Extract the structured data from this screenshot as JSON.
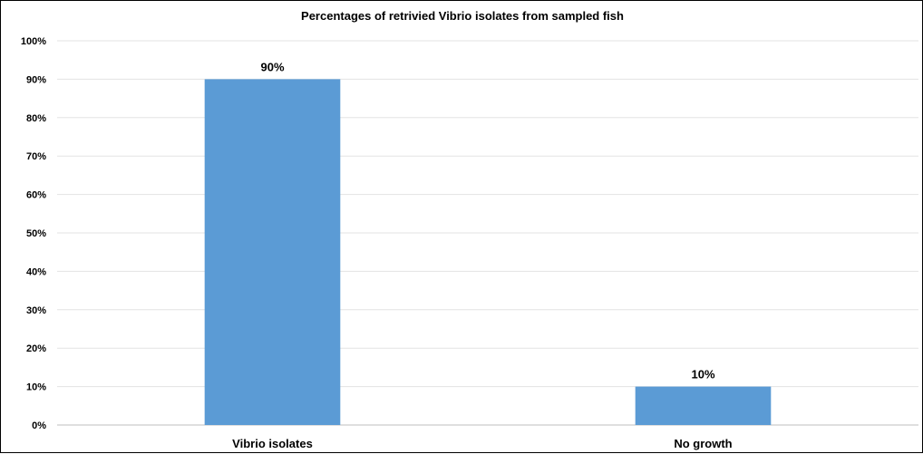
{
  "chart_data": {
    "type": "bar",
    "title": "Percentages of retrivied Vibrio isolates from sampled fish",
    "categories": [
      "Vibrio isolates",
      "No growth"
    ],
    "values": [
      90,
      10
    ],
    "data_labels": [
      "90%",
      "10%"
    ],
    "xlabel": "",
    "ylabel": "",
    "ylim": [
      0,
      100
    ],
    "y_ticks": [
      0,
      10,
      20,
      30,
      40,
      50,
      60,
      70,
      80,
      90,
      100
    ],
    "y_tick_labels": [
      "0%",
      "10%",
      "20%",
      "30%",
      "40%",
      "50%",
      "60%",
      "70%",
      "80%",
      "90%",
      "100%"
    ],
    "grid": true,
    "legend": "none",
    "bar_color": "#5b9bd5"
  }
}
